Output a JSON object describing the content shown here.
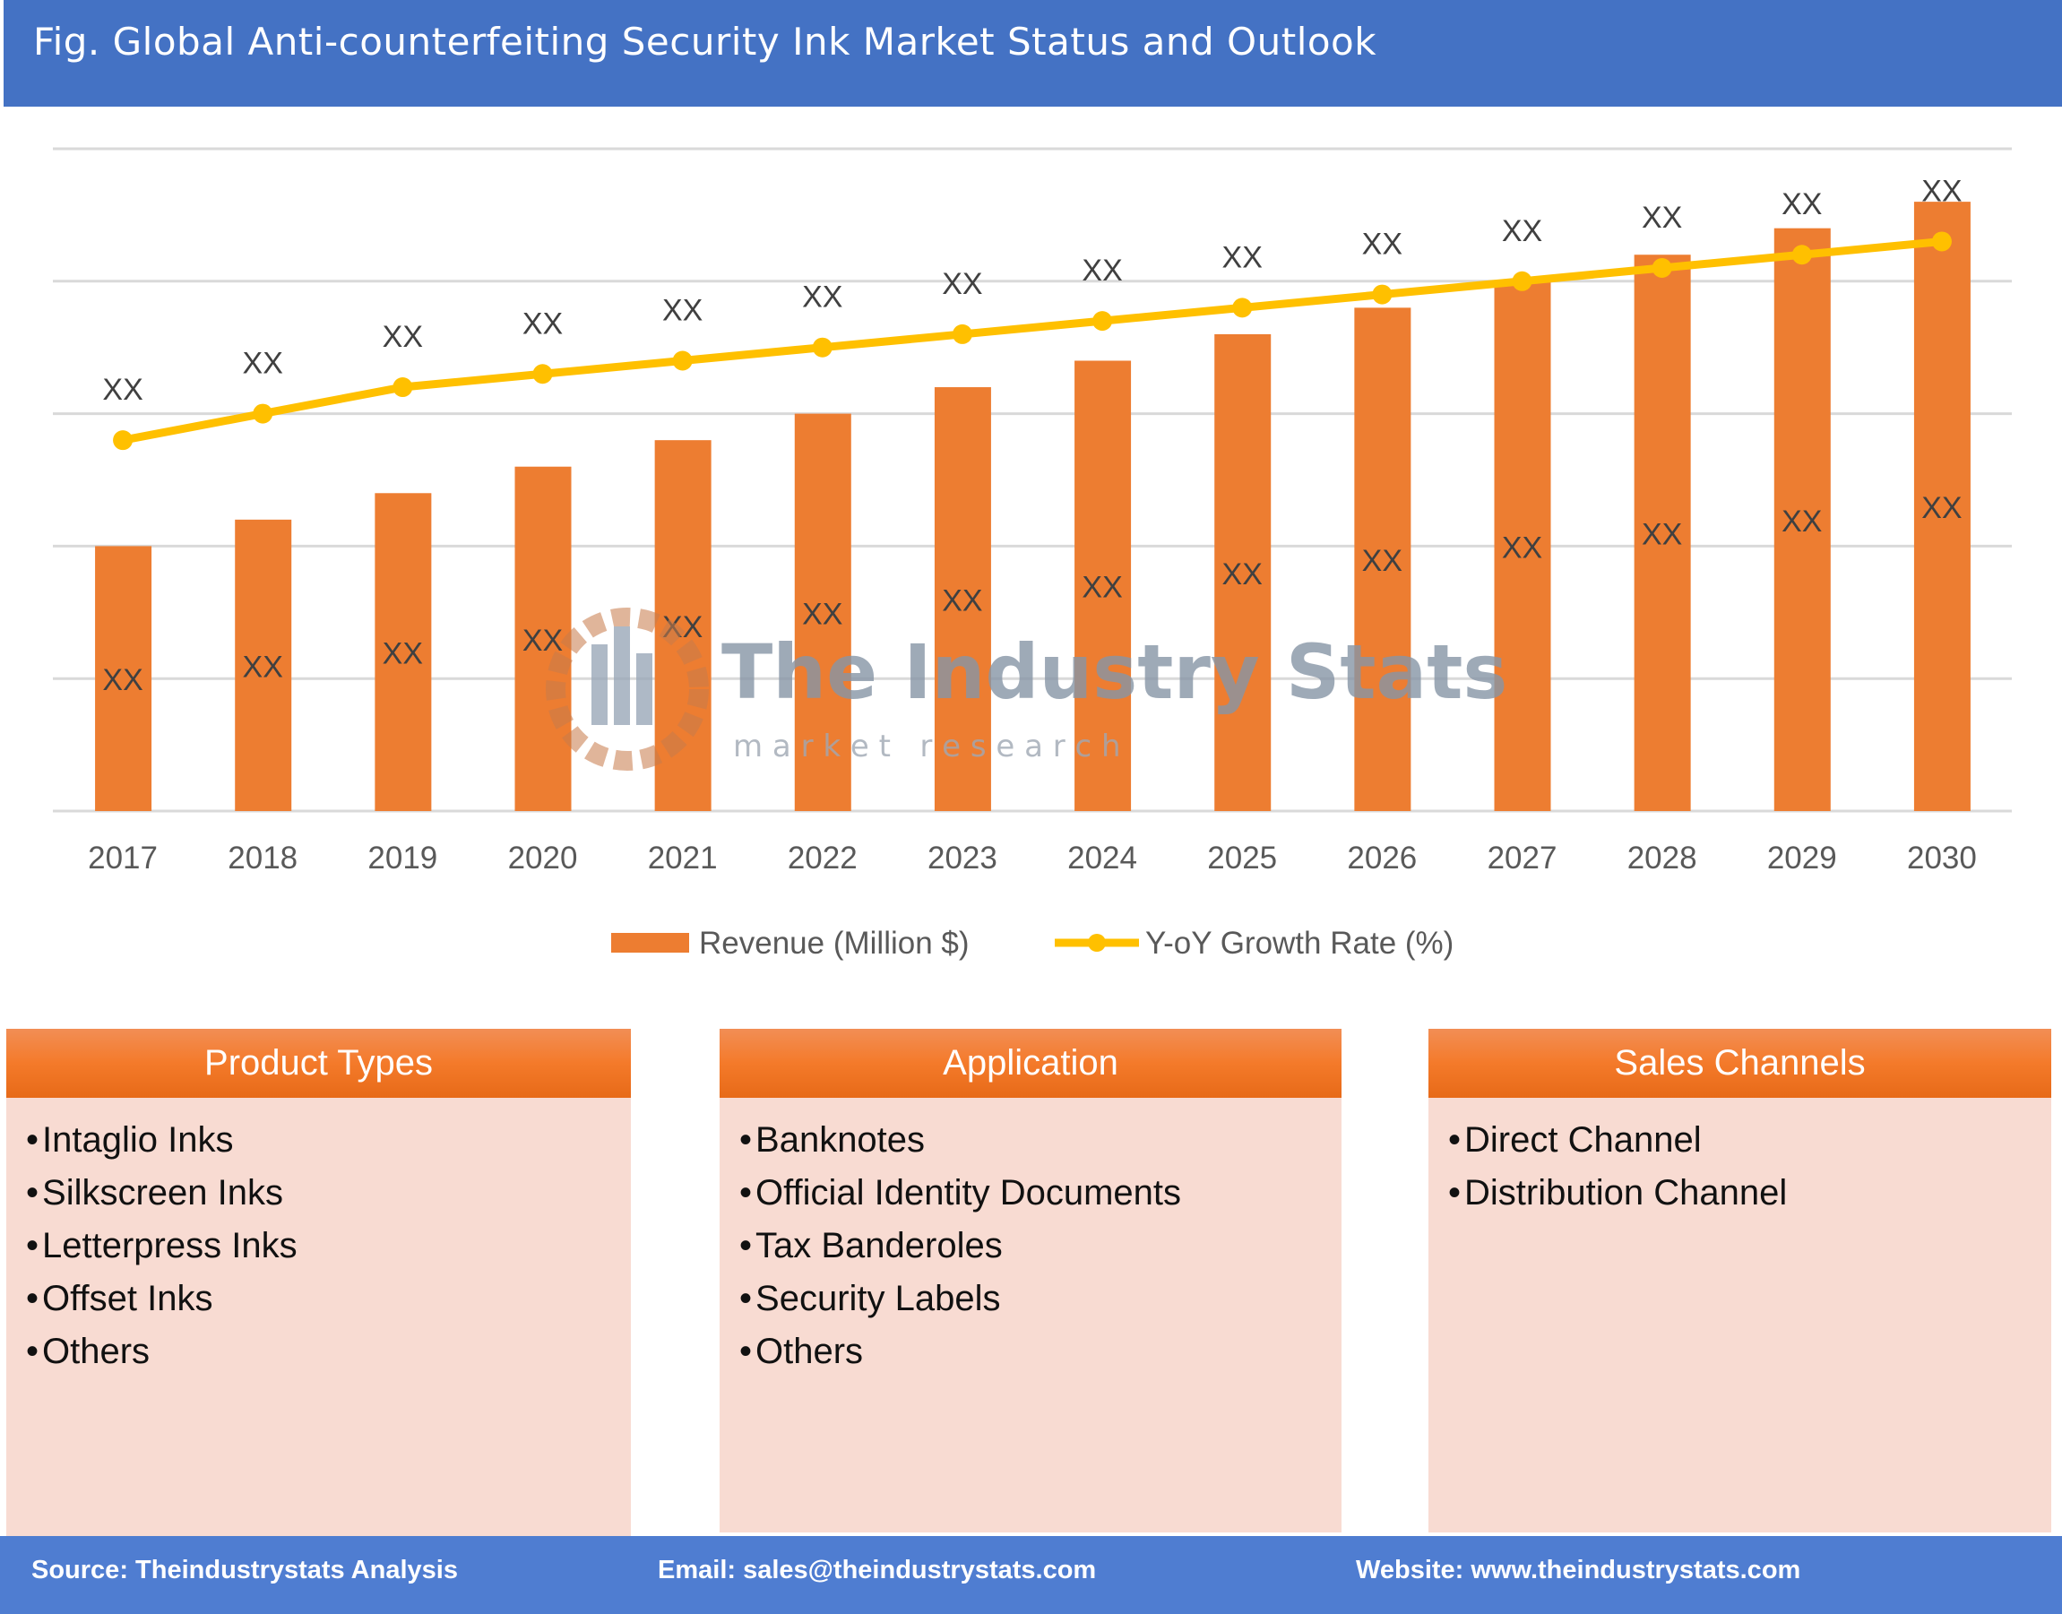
{
  "header": {
    "title": "Fig. Global Anti-counterfeiting Security Ink Market Status and Outlook"
  },
  "watermark": {
    "name": "The Industry Stats",
    "tagline": "m a r k e t   r e s e a r c h"
  },
  "chart_data": {
    "type": "bar+line",
    "categories": [
      "2017",
      "2018",
      "2019",
      "2020",
      "2021",
      "2022",
      "2023",
      "2024",
      "2025",
      "2026",
      "2027",
      "2028",
      "2029",
      "2030"
    ],
    "series": [
      {
        "name": "Revenue (Million $)",
        "type": "bar",
        "color": "#ed7d31",
        "values": [
          2.0,
          2.2,
          2.4,
          2.6,
          2.8,
          3.0,
          3.2,
          3.4,
          3.6,
          3.8,
          4.0,
          4.2,
          4.4,
          4.6
        ],
        "labels": [
          "XX",
          "XX",
          "XX",
          "XX",
          "XX",
          "XX",
          "XX",
          "XX",
          "XX",
          "XX",
          "XX",
          "XX",
          "XX",
          "XX"
        ]
      },
      {
        "name": "Y-oY Growth Rate (%)",
        "type": "line",
        "color": "#ffc000",
        "values": [
          2.8,
          3.0,
          3.2,
          3.3,
          3.4,
          3.5,
          3.6,
          3.7,
          3.8,
          3.9,
          4.0,
          4.1,
          4.2,
          4.3
        ],
        "labels": [
          "XX",
          "XX",
          "XX",
          "XX",
          "XX",
          "XX",
          "XX",
          "XX",
          "XX",
          "XX",
          "XX",
          "XX",
          "XX",
          "XX"
        ]
      }
    ],
    "ylim": [
      0,
      5
    ],
    "grid": true,
    "y_tick_labels_shown": false,
    "legend": "bottom"
  },
  "panels": [
    {
      "title": "Product Types",
      "items": [
        "Intaglio Inks",
        "Silkscreen Inks",
        "Letterpress Inks",
        "Offset Inks",
        "Others"
      ]
    },
    {
      "title": "Application",
      "items": [
        "Banknotes",
        "Official Identity Documents",
        "Tax Banderoles",
        "Security Labels",
        "Others"
      ]
    },
    {
      "title": "Sales Channels",
      "items": [
        "Direct Channel",
        "Distribution Channel"
      ]
    }
  ],
  "footer": {
    "source": "Source: Theindustrystats Analysis",
    "email": "Email: sales@theindustrystats.com",
    "website": "Website: www.theindustrystats.com"
  }
}
